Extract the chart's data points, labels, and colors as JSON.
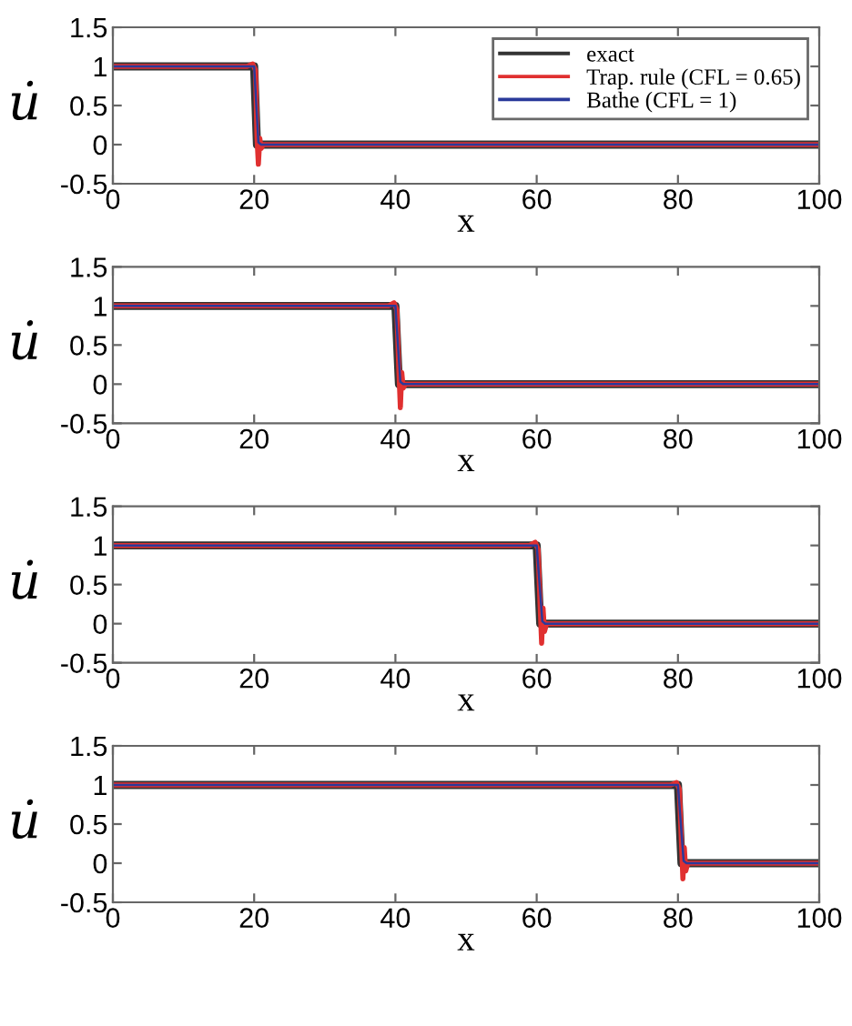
{
  "chart_data": [
    {
      "type": "line",
      "xlabel": "x",
      "ylabel": "u̇",
      "xlim": [
        0,
        100
      ],
      "ylim": [
        -0.5,
        1.5
      ],
      "xticks": [
        0,
        20,
        40,
        60,
        80,
        100
      ],
      "yticks": [
        -0.5,
        0,
        0.5,
        1,
        1.5
      ],
      "legend": "top right",
      "grid": false,
      "series": [
        {
          "name": "exact",
          "color": "#333333",
          "x": [
            0,
            20,
            20.4,
            100
          ],
          "values": [
            1,
            1,
            0,
            0
          ]
        },
        {
          "name": "Trap. rule (CFL = 0.65)",
          "color": "#e03030",
          "x": [
            0,
            19,
            19.8,
            20.2,
            20.4,
            20.6,
            20.8,
            21.0,
            21.3,
            100
          ],
          "values": [
            1,
            1,
            1.03,
            0.95,
            0.1,
            -0.25,
            0.08,
            -0.05,
            0,
            0
          ]
        },
        {
          "name": "Bathe (CFL = 1)",
          "color": "#2a3a9a",
          "x": [
            0,
            20,
            20.6,
            21.0,
            100
          ],
          "values": [
            1,
            1,
            0.03,
            0,
            0
          ]
        }
      ]
    },
    {
      "type": "line",
      "xlabel": "x",
      "ylabel": "u̇",
      "xlim": [
        0,
        100
      ],
      "ylim": [
        -0.5,
        1.5
      ],
      "xticks": [
        0,
        20,
        40,
        60,
        80,
        100
      ],
      "yticks": [
        -0.5,
        0,
        0.5,
        1,
        1.5
      ],
      "grid": false,
      "series": [
        {
          "color": "#333333",
          "x": [
            0,
            40,
            40.5,
            100
          ],
          "values": [
            1,
            1,
            0,
            0
          ]
        },
        {
          "color": "#e03030",
          "x": [
            0,
            39,
            39.8,
            40.2,
            40.5,
            40.7,
            40.9,
            41.1,
            41.4,
            100
          ],
          "values": [
            1,
            1,
            1.04,
            0.95,
            0.15,
            -0.3,
            0.15,
            -0.05,
            0,
            0
          ]
        },
        {
          "color": "#2a3a9a",
          "x": [
            0,
            40,
            40.7,
            41.1,
            100
          ],
          "values": [
            1,
            1,
            0.03,
            0,
            0
          ]
        }
      ]
    },
    {
      "type": "line",
      "xlabel": "x",
      "ylabel": "u̇",
      "xlim": [
        0,
        100
      ],
      "ylim": [
        -0.5,
        1.5
      ],
      "xticks": [
        0,
        20,
        40,
        60,
        80,
        100
      ],
      "yticks": [
        -0.5,
        0,
        0.5,
        1,
        1.5
      ],
      "grid": false,
      "series": [
        {
          "color": "#333333",
          "x": [
            0,
            60,
            60.5,
            100
          ],
          "values": [
            1,
            1,
            0,
            0
          ]
        },
        {
          "color": "#e03030",
          "x": [
            0,
            59,
            59.8,
            60.2,
            60.5,
            60.7,
            60.9,
            61.1,
            61.4,
            100
          ],
          "values": [
            1,
            1,
            1.04,
            0.95,
            0.2,
            -0.25,
            0.2,
            -0.1,
            0,
            0
          ]
        },
        {
          "color": "#2a3a9a",
          "x": [
            0,
            60,
            60.8,
            61.2,
            100
          ],
          "values": [
            1,
            1,
            0.03,
            0,
            0
          ]
        }
      ]
    },
    {
      "type": "line",
      "xlabel": "x",
      "ylabel": "u̇",
      "xlim": [
        0,
        100
      ],
      "ylim": [
        -0.5,
        1.5
      ],
      "xticks": [
        0,
        20,
        40,
        60,
        80,
        100
      ],
      "yticks": [
        -0.5,
        0,
        0.5,
        1,
        1.5
      ],
      "grid": false,
      "series": [
        {
          "color": "#333333",
          "x": [
            0,
            80,
            80.5,
            100
          ],
          "values": [
            1,
            1,
            0,
            0
          ]
        },
        {
          "color": "#e03030",
          "x": [
            0,
            79,
            79.8,
            80.2,
            80.5,
            80.7,
            80.9,
            81.1,
            81.4,
            100
          ],
          "values": [
            1,
            1,
            1.03,
            0.95,
            0.25,
            -0.2,
            0.2,
            -0.1,
            0,
            0
          ]
        },
        {
          "color": "#2a3a9a",
          "x": [
            0,
            80,
            80.8,
            81.2,
            100
          ],
          "values": [
            1,
            1,
            0.03,
            0,
            0
          ]
        }
      ]
    }
  ]
}
